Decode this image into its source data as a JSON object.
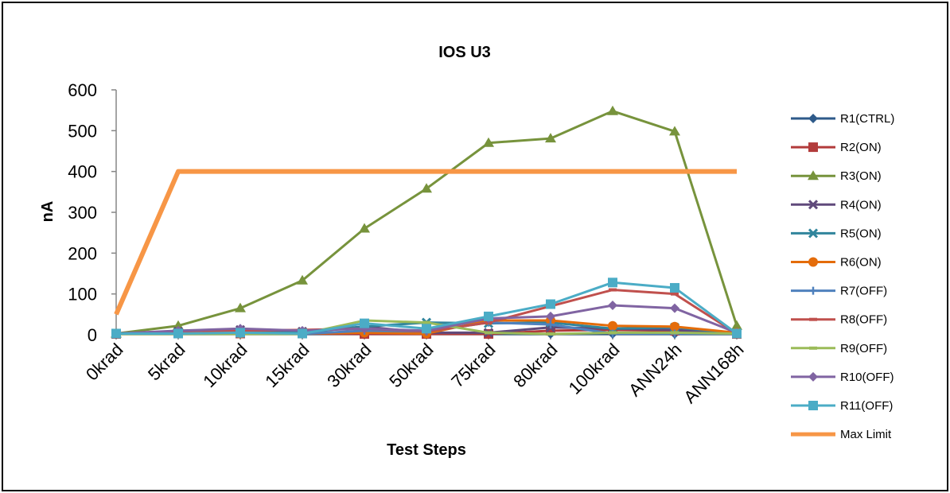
{
  "chart_data": {
    "type": "line",
    "title": "IOS U3",
    "xlabel": "Test Steps",
    "ylabel": "nA",
    "ylim": [
      0,
      600
    ],
    "yticks": [
      "0",
      "100",
      "200",
      "300",
      "400",
      "500",
      "600"
    ],
    "categories": [
      "0krad",
      "5krad",
      "10krad",
      "15krad",
      "30krad",
      "50krad",
      "75krad",
      "80krad",
      "100krad",
      "ANN24h",
      "ANN168h"
    ],
    "legend_position": "right",
    "grid": false,
    "series": [
      {
        "name": "R1(CTRL)",
        "color": "#2e5a8a",
        "marker": "diamond",
        "values": [
          3,
          3,
          2,
          2,
          3,
          2,
          2,
          2,
          2,
          2,
          2
        ]
      },
      {
        "name": "R2(ON)",
        "color": "#b23b3b",
        "marker": "square",
        "values": [
          2,
          3,
          3,
          3,
          2,
          2,
          2,
          10,
          12,
          10,
          2
        ]
      },
      {
        "name": "R3(ON)",
        "color": "#77933c",
        "marker": "triangle",
        "values": [
          3,
          22,
          65,
          133,
          260,
          358,
          470,
          481,
          548,
          498,
          22
        ]
      },
      {
        "name": "R4(ON)",
        "color": "#604a7b",
        "marker": "x",
        "values": [
          3,
          8,
          12,
          8,
          20,
          5,
          5,
          18,
          15,
          12,
          3
        ]
      },
      {
        "name": "R5(ON)",
        "color": "#31859c",
        "marker": "x",
        "values": [
          2,
          5,
          5,
          5,
          20,
          30,
          28,
          30,
          15,
          18,
          4
        ]
      },
      {
        "name": "R6(ON)",
        "color": "#e46c0a",
        "marker": "circle",
        "values": [
          3,
          4,
          3,
          3,
          5,
          3,
          35,
          35,
          22,
          20,
          5
        ]
      },
      {
        "name": "R7(OFF)",
        "color": "#4f81bd",
        "marker": "plus",
        "values": [
          2,
          2,
          2,
          2,
          10,
          8,
          30,
          25,
          3,
          3,
          3
        ]
      },
      {
        "name": "R8(OFF)",
        "color": "#c0504d",
        "marker": "dash",
        "values": [
          3,
          5,
          10,
          12,
          15,
          8,
          30,
          70,
          110,
          100,
          3
        ]
      },
      {
        "name": "R9(OFF)",
        "color": "#9bbb59",
        "marker": "dash",
        "values": [
          2,
          2,
          2,
          2,
          35,
          30,
          5,
          2,
          5,
          5,
          3
        ]
      },
      {
        "name": "R10(OFF)",
        "color": "#8064a2",
        "marker": "diamond",
        "values": [
          3,
          10,
          15,
          10,
          15,
          10,
          40,
          45,
          72,
          65,
          5
        ]
      },
      {
        "name": "R11(OFF)",
        "color": "#4bacc6",
        "marker": "square",
        "values": [
          3,
          3,
          5,
          3,
          28,
          15,
          45,
          75,
          128,
          115,
          3
        ]
      },
      {
        "name": "Max Limit",
        "color": "#f79646",
        "marker": "none",
        "values": [
          50,
          400,
          400,
          400,
          400,
          400,
          400,
          400,
          400,
          400,
          400
        ]
      }
    ]
  }
}
